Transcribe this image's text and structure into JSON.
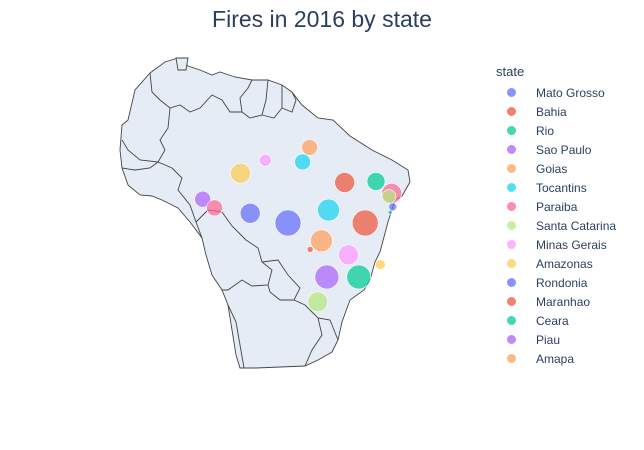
{
  "title": "Fires in 2016 by state",
  "legend": {
    "title": "state"
  },
  "chart_data": {
    "type": "scatter_geo",
    "title": "Fires in 2016 by state",
    "legend_title": "state",
    "legend_position": "right",
    "series": [
      {
        "name": "Mato Grosso",
        "color": "#636efa",
        "lon": -55.8,
        "lat": -12.6,
        "size": 13
      },
      {
        "name": "Bahia",
        "color": "#EF553B",
        "lon": -41.5,
        "lat": -12.6,
        "size": 13
      },
      {
        "name": "Rio",
        "color": "#00cc96",
        "lon": -42.7,
        "lat": -22.6,
        "size": 12
      },
      {
        "name": "Sao Paulo",
        "color": "#ab63fa",
        "lon": -48.6,
        "lat": -22.6,
        "size": 12
      },
      {
        "name": "Goias",
        "color": "#FFA15A",
        "lon": -49.6,
        "lat": -15.9,
        "size": 11
      },
      {
        "name": "Tocantins",
        "color": "#19d3f3",
        "lon": -48.3,
        "lat": -10.2,
        "size": 11
      },
      {
        "name": "Paraiba",
        "color": "#FF6692",
        "lon": -36.6,
        "lat": -7.1,
        "size": 10
      },
      {
        "name": "Santa Catarina",
        "color": "#B6E880",
        "lon": -50.3,
        "lat": -27.2,
        "size": 10
      },
      {
        "name": "Minas Gerais",
        "color": "#FF97FF",
        "lon": -44.6,
        "lat": -18.5,
        "size": 10
      },
      {
        "name": "Amazonas",
        "color": "#FECB52",
        "lon": -64.6,
        "lat": -3.4,
        "size": 10
      },
      {
        "name": "Rondonia",
        "color": "#636efa",
        "lon": -62.8,
        "lat": -10.8,
        "size": 10
      },
      {
        "name": "Maranhao",
        "color": "#EF553B",
        "lon": -45.3,
        "lat": -5.1,
        "size": 10
      },
      {
        "name": "Ceara",
        "color": "#00cc96",
        "lon": -39.5,
        "lat": -4.9,
        "size": 9
      },
      {
        "name": "Piau",
        "color": "#ab63fa",
        "lon": -71.6,
        "lat": -8.2,
        "size": 8
      },
      {
        "name": "Amapa",
        "color": "#FFA15A",
        "lon": -51.8,
        "lat": 1.4,
        "size": 8
      }
    ],
    "extra_points": [
      {
        "color": "#FF6692",
        "lon": -69.4,
        "lat": -9.8,
        "size": 8
      },
      {
        "color": "#19d3f3",
        "lon": -53.1,
        "lat": -1.3,
        "size": 8
      },
      {
        "color": "#FF97FF",
        "lon": -60.0,
        "lat": -1.0,
        "size": 6
      },
      {
        "color": "#B6E880",
        "lon": -37.1,
        "lat": -7.7,
        "size": 7
      },
      {
        "color": "#636efa",
        "lon": -36.4,
        "lat": -9.6,
        "size": 4
      },
      {
        "color": "#00cc96",
        "lon": -36.9,
        "lat": -10.6,
        "size": 2
      },
      {
        "color": "#FECB52",
        "lon": -38.7,
        "lat": -20.3,
        "size": 5
      },
      {
        "color": "#EF553B",
        "lon": -51.7,
        "lat": -17.5,
        "size": 3
      }
    ]
  }
}
